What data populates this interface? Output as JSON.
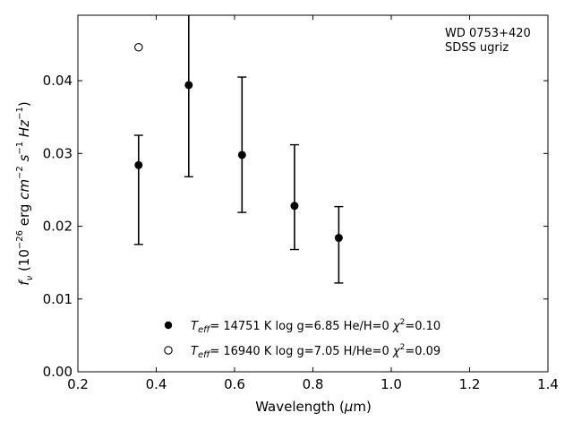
{
  "chart_data": {
    "type": "scatter",
    "xlabel": "Wavelength (μm)",
    "ylabel": "f_ν (10^-26 erg cm^-2 s^-1 Hz^-1)",
    "xlim": [
      0.2,
      1.4
    ],
    "ylim": [
      0.0,
      0.049
    ],
    "x_ticks": [
      0.2,
      0.4,
      0.6,
      0.8,
      1.0,
      1.2,
      1.4
    ],
    "x_tick_labels": [
      "0.2",
      "0.4",
      "0.6",
      "0.8",
      "1.0",
      "1.2",
      "1.4"
    ],
    "y_ticks": [
      0.0,
      0.01,
      0.02,
      0.03,
      0.04
    ],
    "y_tick_labels": [
      "0.00",
      "0.01",
      "0.02",
      "0.03",
      "0.04"
    ],
    "grid": false,
    "annotation": [
      "WD 0753+420",
      "SDSS ugriz"
    ],
    "legend_position": "bottom-center",
    "series": [
      {
        "name": "Teff= 14751 K  log g=6.85  He/H=0  χ2=0.10",
        "marker": "filled-circle",
        "x": [
          0.355,
          0.483,
          0.619,
          0.753,
          0.866
        ],
        "y": [
          0.0284,
          0.0394,
          0.0298,
          0.0228,
          0.0184
        ],
        "yerr_low": [
          0.0175,
          0.0268,
          0.0219,
          0.0168,
          0.0122
        ],
        "yerr_high": [
          0.0325,
          0.049,
          0.0405,
          0.0312,
          0.0227
        ]
      },
      {
        "name": "Teff= 16940 K  log g=7.05  H/He=0  χ2=0.09",
        "marker": "open-circle",
        "x": [
          0.355
        ],
        "y": [
          0.0446
        ]
      }
    ],
    "legend": [
      {
        "label": "Teff= 14751 K  log g=6.85  He/H=0  χ2=0.10"
      },
      {
        "label": "Teff= 16940 K  log g=7.05  H/He=0  χ2=0.09"
      }
    ]
  }
}
